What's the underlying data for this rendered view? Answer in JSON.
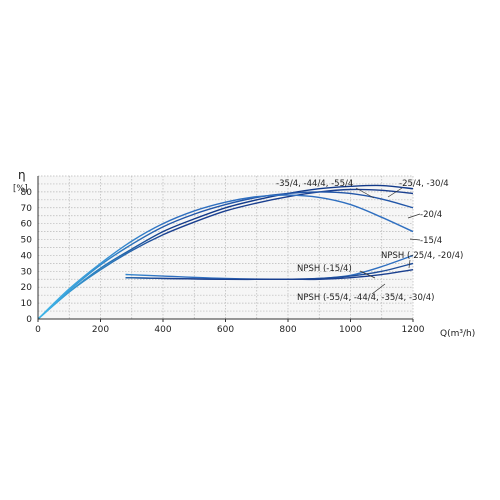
{
  "chart_data": {
    "type": "line",
    "ylabel": "η",
    "yunit": "[%]",
    "xlabel": "Q(m³/h)",
    "xlim": [
      0,
      1200
    ],
    "ylim": [
      0,
      90
    ],
    "xticks": [
      0,
      200,
      400,
      600,
      800,
      1000,
      1200
    ],
    "yticks": [
      0,
      10,
      20,
      30,
      40,
      50,
      60,
      70,
      80
    ],
    "grid": true,
    "series": [
      {
        "name": "-35/4, -44/4, -55/4",
        "color": "#1a3f8f",
        "x": [
          0,
          100,
          200,
          300,
          400,
          500,
          600,
          700,
          800,
          900,
          1000,
          1100,
          1200
        ],
        "y": [
          0,
          17,
          31,
          43,
          53,
          61,
          68,
          73,
          77,
          80,
          81.5,
          81,
          79
        ]
      },
      {
        "name": "-25/4, -30/4",
        "color": "#123a8a",
        "x": [
          0,
          100,
          200,
          300,
          400,
          500,
          600,
          700,
          800,
          900,
          1000,
          1100,
          1200
        ],
        "y": [
          0,
          17,
          32,
          44,
          55,
          63,
          70,
          75,
          79,
          82,
          83.5,
          84,
          82
        ]
      },
      {
        "name": "-20/4",
        "color": "#2256a8",
        "x": [
          0,
          100,
          200,
          300,
          400,
          500,
          600,
          700,
          800,
          900,
          1000,
          1100,
          1200
        ],
        "y": [
          0,
          18,
          34,
          47,
          58,
          66,
          72,
          76.5,
          79,
          80,
          79,
          75.5,
          70
        ]
      },
      {
        "name": "-15/4",
        "color": "#2f6fc0",
        "x": [
          0,
          100,
          200,
          300,
          400,
          500,
          600,
          700,
          800,
          900,
          1000,
          1100,
          1200
        ],
        "y": [
          0,
          19,
          35,
          49,
          60,
          68,
          73.5,
          77,
          78,
          76.5,
          72,
          64,
          55
        ]
      },
      {
        "name": "NPSH (-15/4)",
        "color": "#2f6fc0",
        "x": [
          280,
          400,
          600,
          800,
          900,
          1000,
          1100,
          1200
        ],
        "y": [
          28,
          27,
          25.5,
          25,
          25.5,
          27.5,
          33,
          40
        ]
      },
      {
        "name": "NPSH (-25/4, -20/4)",
        "color": "#1e4d9a",
        "x": [
          280,
          400,
          600,
          800,
          900,
          1000,
          1100,
          1200
        ],
        "y": [
          26,
          25.5,
          25,
          25,
          25.5,
          27,
          30,
          35
        ]
      },
      {
        "name": "NPSH (-55/4, -44/4, -35/4, -30/4)",
        "color": "#1a3f8f",
        "x": [
          280,
          400,
          600,
          800,
          900,
          1000,
          1100,
          1200
        ],
        "y": [
          26,
          25.5,
          25,
          25,
          25,
          26,
          28,
          31
        ]
      }
    ],
    "annotations": [
      {
        "series": 0,
        "text": "-35/4, -44/4, -55/4",
        "at": [
          1080,
          82
        ]
      },
      {
        "series": 1,
        "text": "-25/4, -30/4",
        "at": [
          1120,
          84
        ]
      },
      {
        "series": 2,
        "text": "-20/4",
        "at": [
          1200,
          70
        ]
      },
      {
        "series": 3,
        "text": "-15/4",
        "at": [
          1200,
          55
        ]
      },
      {
        "series": 4,
        "text": "NPSH (-15/4)",
        "at": [
          1100,
          33
        ]
      },
      {
        "series": 5,
        "text": "NPSH (-25/4, -20/4)",
        "at": [
          1190,
          35
        ]
      },
      {
        "series": 6,
        "text": "NPSH (-55/4, -44/4, -35/4, -30/4)",
        "at": [
          1050,
          27
        ]
      }
    ]
  }
}
